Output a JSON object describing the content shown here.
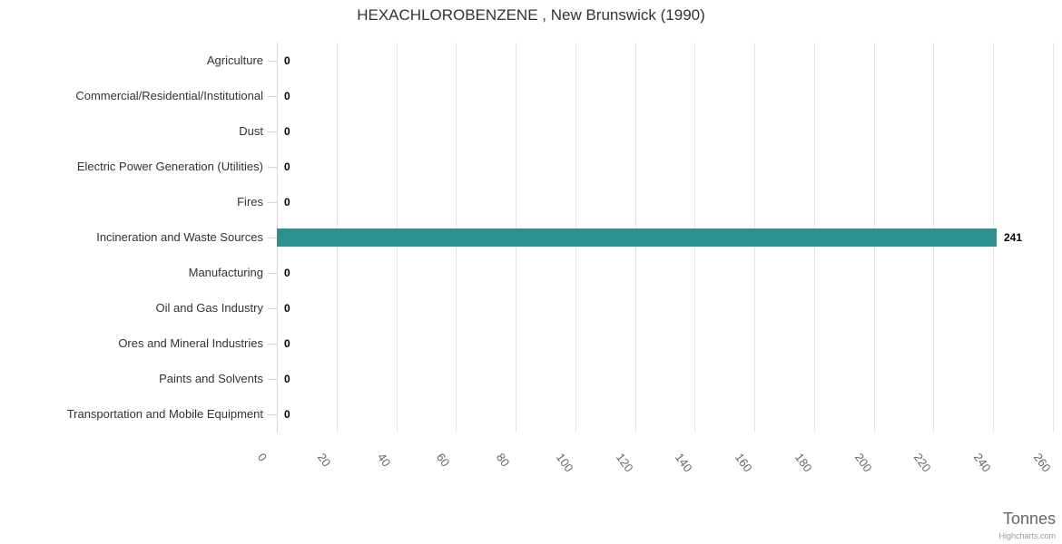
{
  "chart_data": {
    "type": "bar",
    "orientation": "horizontal",
    "title": "HEXACHLOROBENZENE , New Brunswick (1990)",
    "categories": [
      "Agriculture",
      "Commercial/Residential/Institutional",
      "Dust",
      "Electric Power Generation (Utilities)",
      "Fires",
      "Incineration and Waste Sources",
      "Manufacturing",
      "Oil and Gas Industry",
      "Ores and Mineral Industries",
      "Paints and Solvents",
      "Transportation and Mobile Equipment"
    ],
    "values": [
      0,
      0,
      0,
      0,
      0,
      241,
      0,
      0,
      0,
      0,
      0
    ],
    "data_labels": [
      "0",
      "0",
      "0",
      "0",
      "0",
      "241",
      "0",
      "0",
      "0",
      "0",
      "0"
    ],
    "xlabel": "Tonnes",
    "ylabel": "",
    "value_ticks": [
      0,
      20,
      40,
      60,
      80,
      100,
      120,
      140,
      160,
      180,
      200,
      220,
      240,
      260
    ],
    "value_axis_range": [
      0,
      260
    ],
    "grid": true,
    "legend": false,
    "credit": "Highcharts.com",
    "colors": {
      "bar": "#2b908f",
      "title_text": "#333333",
      "category_label": "#333333",
      "tick_label": "#666666",
      "axis_line": "#ccd6eb",
      "gridline": "#e6e6e6",
      "data_label": "#000000",
      "axis_title": "#666666",
      "credit": "#999999"
    }
  }
}
